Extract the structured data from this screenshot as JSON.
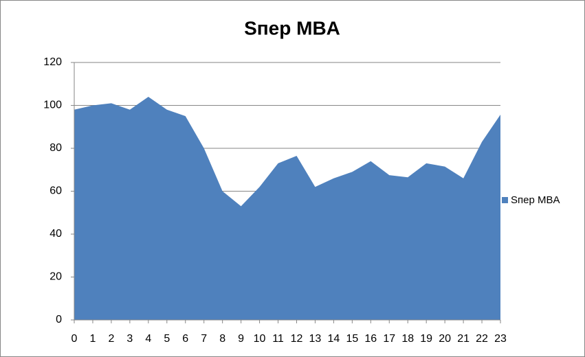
{
  "chart_data": {
    "type": "area",
    "title": "Sпер MBA",
    "categories": [
      "0",
      "1",
      "2",
      "3",
      "4",
      "5",
      "6",
      "7",
      "8",
      "9",
      "10",
      "11",
      "12",
      "13",
      "14",
      "15",
      "16",
      "17",
      "18",
      "19",
      "20",
      "21",
      "22",
      "23"
    ],
    "series": [
      {
        "name": "Sпер MBA",
        "color": "#4f81bd",
        "values": [
          98,
          100,
          101,
          98,
          104,
          98,
          95,
          80,
          60,
          53,
          62,
          73,
          76.5,
          62,
          66,
          69,
          74,
          67.5,
          66.5,
          73,
          71.5,
          66,
          83,
          95.7
        ]
      }
    ],
    "ylim": [
      0,
      120
    ],
    "yticks": [
      0,
      20,
      40,
      60,
      80,
      100,
      120
    ],
    "grid": true,
    "legend": "right"
  }
}
